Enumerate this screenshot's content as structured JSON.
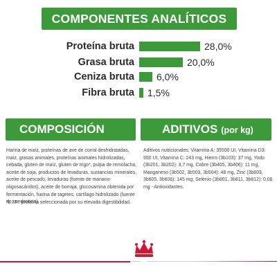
{
  "header": {
    "title": "COMPONENTES ANALÍTICOS"
  },
  "analytics": [
    {
      "label": "Proteína bruta",
      "value": "28,0%",
      "amount": 28.0
    },
    {
      "label": "Grasa bruta",
      "value": "20,0%",
      "amount": 20.0
    },
    {
      "label": "Ceniza bruta",
      "value": "6,0%",
      "amount": 6.0
    },
    {
      "label": "Fibra bruta",
      "value": "1,5%",
      "amount": 1.5
    }
  ],
  "composition": {
    "title": "COMPOSICIÓN",
    "text": "Harina de maíz, proteínas de ave de corral deshidratadas, maíz, grasas animales, proteínas animales hidrolizadas, cebada, gluten de maíz, gluten de trigo*, pulpa de remolacha, aceite de soja, productos de levaduras, sustancias minerales, aceite de pescado, levaduras (fuente de manano-oligosacáridos), aceite de borraja, glucosamina obtenida por fermentación, harina de tagetes, cartílago hidrolizado (fuente de condroitina).",
    "footnote": "*L.I.P.: proteína seleccionada por su elevada digestibilidad."
  },
  "additives": {
    "title": "ADITIVOS",
    "unit": "(por kg)",
    "text": "Aditivos nutricionales: Vitamina A: 35500 UI, Vitamina D3: 950 UI, Vitamina C: 243 mg, Hierro (3b103): 37 mg, Yodo (3b201, 3b202): 3,7 mg, Cobre (3b405, 3b406): 11 mg, Manganeso (3b502, 3b503, 3b504): 48 mg, Zinc (3b603, 3b605, 3b606): 145 mg, Selenio (3b801, 3b811, 3b812): 0,06 mg - Antioxidantes."
  },
  "brand": {
    "logo_icon": "royal-canin-crown-icon",
    "accent_color": "#d01834",
    "green": "#3d9a3a"
  }
}
